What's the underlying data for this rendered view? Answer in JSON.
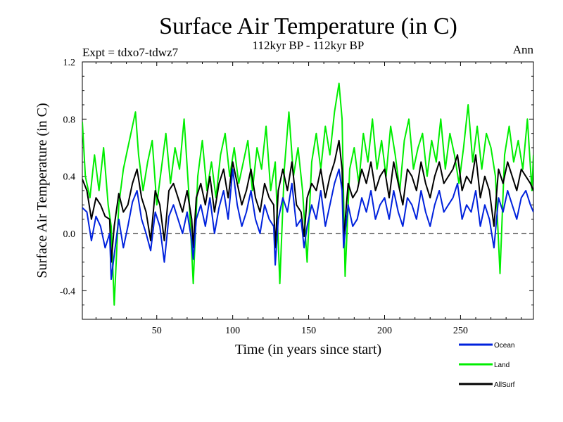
{
  "chart_data": {
    "type": "line",
    "title": "Surface Air Temperature (in C)",
    "subtitle": "112kyr BP - 112kyr BP",
    "experiment_label": "Expt = tdxo7-tdwz7",
    "season_label": "Ann",
    "xlabel": "Time (in years since start)",
    "ylabel": "Surface Air Temperature (in C)",
    "xlim": [
      1,
      298
    ],
    "ylim": [
      -0.6,
      1.2
    ],
    "xticks": [
      50,
      100,
      150,
      200,
      250
    ],
    "yticks": [
      -0.4,
      0.0,
      0.4,
      0.8,
      1.2
    ],
    "ytick_labels": [
      "-0.4",
      "0.0",
      "0.4",
      "0.8",
      "1.2"
    ],
    "zero_line": "dashed",
    "grid": false,
    "legend_position": "bottom-right, below plot",
    "series": [
      {
        "name": "Ocean",
        "color": "#0022dd",
        "x": [
          1,
          4,
          7,
          10,
          13,
          16,
          19,
          20,
          22,
          25,
          28,
          31,
          34,
          37,
          40,
          43,
          46,
          49,
          52,
          55,
          58,
          61,
          64,
          67,
          70,
          73,
          74,
          76,
          79,
          82,
          85,
          88,
          91,
          94,
          97,
          100,
          103,
          106,
          109,
          112,
          115,
          118,
          121,
          124,
          127,
          128,
          130,
          133,
          136,
          139,
          142,
          145,
          147,
          149,
          152,
          155,
          158,
          161,
          164,
          167,
          170,
          172,
          173,
          176,
          179,
          182,
          185,
          188,
          191,
          194,
          197,
          200,
          203,
          206,
          209,
          212,
          215,
          218,
          221,
          224,
          227,
          230,
          233,
          236,
          239,
          242,
          245,
          248,
          251,
          254,
          257,
          260,
          263,
          266,
          269,
          272,
          275,
          278,
          281,
          284,
          287,
          290,
          293,
          296,
          298
        ],
        "y": [
          0.18,
          0.15,
          -0.05,
          0.12,
          0.05,
          -0.1,
          0.0,
          -0.32,
          -0.15,
          0.1,
          -0.1,
          0.05,
          0.22,
          0.3,
          0.1,
          0.0,
          -0.12,
          0.15,
          0.05,
          -0.2,
          0.12,
          0.2,
          0.1,
          0.0,
          0.15,
          -0.05,
          -0.18,
          0.1,
          0.2,
          0.05,
          0.25,
          0.0,
          0.18,
          0.3,
          0.1,
          0.45,
          0.2,
          0.05,
          0.15,
          0.3,
          0.1,
          0.0,
          0.2,
          0.1,
          0.05,
          -0.22,
          0.1,
          0.25,
          0.15,
          0.35,
          0.05,
          0.1,
          -0.1,
          0.05,
          0.2,
          0.1,
          0.3,
          0.05,
          0.2,
          0.35,
          0.45,
          0.3,
          -0.1,
          0.2,
          0.05,
          0.1,
          0.25,
          0.15,
          0.3,
          0.1,
          0.2,
          0.25,
          0.1,
          0.3,
          0.15,
          0.05,
          0.25,
          0.2,
          0.1,
          0.3,
          0.15,
          0.05,
          0.2,
          0.3,
          0.15,
          0.2,
          0.25,
          0.35,
          0.1,
          0.2,
          0.15,
          0.3,
          0.05,
          0.2,
          0.1,
          -0.1,
          0.25,
          0.15,
          0.3,
          0.2,
          0.1,
          0.25,
          0.3,
          0.2,
          0.15
        ]
      },
      {
        "name": "Land",
        "color": "#00ee00",
        "x": [
          1,
          3,
          6,
          9,
          12,
          15,
          18,
          20,
          22,
          25,
          28,
          31,
          34,
          36,
          38,
          41,
          44,
          47,
          50,
          53,
          56,
          59,
          62,
          65,
          68,
          71,
          74,
          77,
          80,
          83,
          86,
          89,
          92,
          95,
          98,
          101,
          104,
          107,
          110,
          113,
          116,
          119,
          122,
          125,
          128,
          131,
          134,
          137,
          140,
          143,
          146,
          149,
          152,
          155,
          158,
          161,
          164,
          167,
          170,
          172,
          174,
          177,
          180,
          183,
          186,
          189,
          192,
          195,
          198,
          201,
          204,
          207,
          210,
          213,
          216,
          219,
          222,
          225,
          228,
          231,
          234,
          237,
          240,
          243,
          246,
          249,
          252,
          255,
          258,
          261,
          264,
          267,
          270,
          273,
          276,
          279,
          282,
          285,
          288,
          291,
          294,
          297,
          298
        ],
        "y": [
          0.78,
          0.4,
          0.25,
          0.55,
          0.3,
          0.6,
          0.2,
          0.05,
          -0.5,
          0.2,
          0.45,
          0.6,
          0.75,
          0.85,
          0.55,
          0.3,
          0.5,
          0.65,
          0.2,
          0.45,
          0.7,
          0.35,
          0.6,
          0.45,
          0.8,
          0.3,
          -0.35,
          0.4,
          0.65,
          0.3,
          0.5,
          0.25,
          0.55,
          0.7,
          0.4,
          0.6,
          0.35,
          0.5,
          0.65,
          0.3,
          0.6,
          0.45,
          0.75,
          0.3,
          0.5,
          -0.35,
          0.45,
          0.85,
          0.4,
          0.6,
          0.3,
          -0.2,
          0.5,
          0.7,
          0.45,
          0.75,
          0.55,
          0.85,
          1.05,
          0.8,
          -0.3,
          0.45,
          0.6,
          0.35,
          0.7,
          0.5,
          0.8,
          0.45,
          0.65,
          0.4,
          0.75,
          0.55,
          0.3,
          0.65,
          0.8,
          0.45,
          0.6,
          0.7,
          0.4,
          0.65,
          0.5,
          0.8,
          0.45,
          0.7,
          0.55,
          0.35,
          0.6,
          0.9,
          0.5,
          0.75,
          0.45,
          0.7,
          0.6,
          0.4,
          -0.28,
          0.55,
          0.75,
          0.5,
          0.65,
          0.45,
          0.8,
          0.3,
          0.55
        ]
      },
      {
        "name": "AllSurf",
        "color": "#000000",
        "x": [
          1,
          4,
          7,
          10,
          13,
          16,
          19,
          20,
          22,
          25,
          28,
          31,
          34,
          37,
          40,
          43,
          46,
          49,
          52,
          55,
          58,
          61,
          64,
          67,
          70,
          73,
          74,
          76,
          79,
          82,
          85,
          88,
          91,
          94,
          97,
          100,
          103,
          106,
          109,
          112,
          115,
          118,
          121,
          124,
          127,
          128,
          130,
          133,
          136,
          139,
          142,
          145,
          147,
          149,
          152,
          155,
          158,
          161,
          164,
          167,
          170,
          172,
          173,
          176,
          179,
          182,
          185,
          188,
          191,
          194,
          197,
          200,
          203,
          206,
          209,
          212,
          215,
          218,
          221,
          224,
          227,
          230,
          233,
          236,
          239,
          242,
          245,
          248,
          251,
          254,
          257,
          260,
          263,
          266,
          269,
          272,
          275,
          278,
          281,
          284,
          287,
          290,
          293,
          296,
          298
        ],
        "y": [
          0.38,
          0.3,
          0.1,
          0.25,
          0.2,
          0.12,
          0.1,
          -0.2,
          0.05,
          0.28,
          0.15,
          0.2,
          0.35,
          0.45,
          0.25,
          0.15,
          -0.05,
          0.3,
          0.2,
          -0.05,
          0.3,
          0.35,
          0.25,
          0.15,
          0.3,
          0.1,
          -0.1,
          0.25,
          0.35,
          0.2,
          0.4,
          0.15,
          0.35,
          0.45,
          0.25,
          0.5,
          0.35,
          0.2,
          0.3,
          0.45,
          0.25,
          0.15,
          0.35,
          0.25,
          0.2,
          -0.1,
          0.3,
          0.45,
          0.3,
          0.5,
          0.2,
          0.15,
          -0.02,
          0.25,
          0.35,
          0.3,
          0.45,
          0.25,
          0.4,
          0.5,
          0.65,
          0.45,
          -0.05,
          0.35,
          0.25,
          0.3,
          0.45,
          0.35,
          0.5,
          0.3,
          0.4,
          0.45,
          0.25,
          0.5,
          0.35,
          0.2,
          0.45,
          0.4,
          0.3,
          0.5,
          0.35,
          0.25,
          0.4,
          0.5,
          0.35,
          0.4,
          0.45,
          0.55,
          0.3,
          0.4,
          0.35,
          0.55,
          0.25,
          0.4,
          0.3,
          0.05,
          0.45,
          0.35,
          0.5,
          0.4,
          0.3,
          0.45,
          0.4,
          0.35,
          0.3
        ]
      }
    ]
  }
}
